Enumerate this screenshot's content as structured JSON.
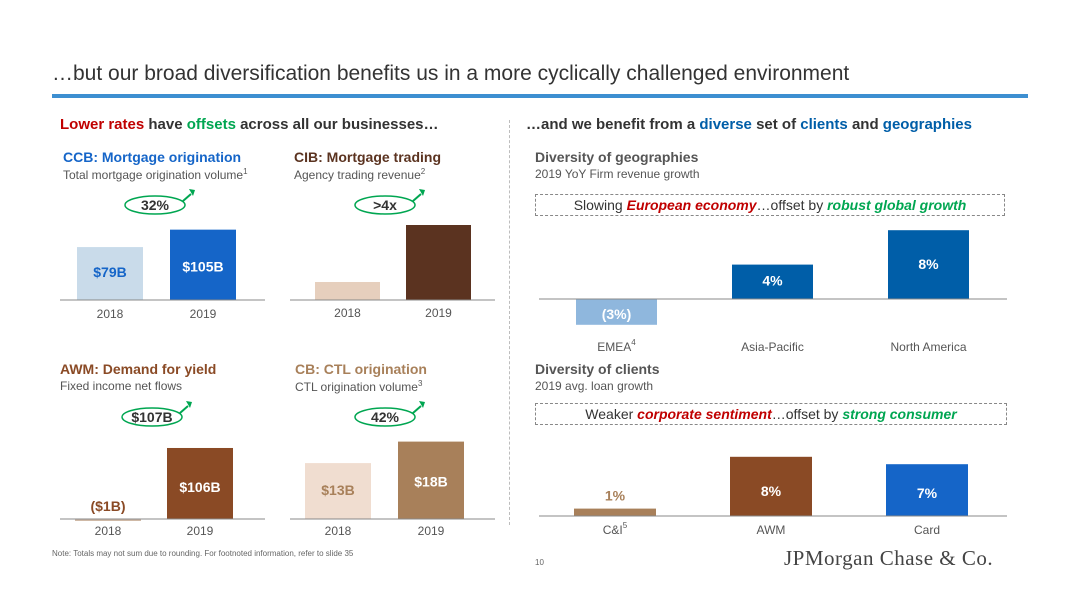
{
  "title": "…but our broad diversification benefits us in a more cyclically challenged environment",
  "left_header": {
    "p1": "Lower rates",
    "p2": " have ",
    "p3": "offsets",
    "p4": " across all our businesses…"
  },
  "right_header": {
    "p1": "…and we benefit from a ",
    "p2": "diverse",
    "p3": " set of ",
    "p4": "clients",
    "p5": " and ",
    "p6": "geographies"
  },
  "colors": {
    "red": "#c00000",
    "green": "#00a651",
    "blue": "#005ea8",
    "title_rule": "#3d8fd1"
  },
  "panels": {
    "ccb": {
      "title": "CCB: Mortgage origination",
      "subtitle": "Total mortgage origination volume",
      "footnote": "1",
      "growth_label": "32%"
    },
    "cib": {
      "title": "CIB: Mortgage trading",
      "subtitle": "Agency trading revenue",
      "footnote": "2",
      "growth_label": ">4x"
    },
    "awm": {
      "title": "AWM: Demand for yield",
      "subtitle": "Fixed income net flows",
      "growth_label": "$107B"
    },
    "cb": {
      "title": "CB: CTL origination",
      "subtitle": "CTL origination volume",
      "footnote": "3",
      "growth_label": "42%"
    },
    "geo": {
      "title": "Diversity of geographies",
      "subtitle": "2019 YoY Firm revenue growth",
      "callout": {
        "p1": "Slowing ",
        "p2": "European economy",
        "p3": "…offset by ",
        "p4": "robust global growth"
      }
    },
    "clients": {
      "title": "Diversity of clients",
      "subtitle": "2019 avg. loan growth",
      "callout": {
        "p1": "Weaker ",
        "p2": "corporate sentiment",
        "p3": "…offset by ",
        "p4": "strong consumer"
      }
    }
  },
  "chart_data": [
    {
      "id": "ccb",
      "type": "bar",
      "categories": [
        "2018",
        "2019"
      ],
      "values": [
        79,
        105
      ],
      "unit": "$B",
      "data_labels": [
        "$79B",
        "$105B"
      ],
      "colors": [
        "#c9dbea",
        "#1565c8"
      ],
      "label_colors": [
        "#1565c8",
        "#ffffff"
      ],
      "ylim": [
        0,
        110
      ]
    },
    {
      "id": "cib",
      "type": "bar",
      "categories": [
        "2018",
        "2019"
      ],
      "values": [
        null,
        null
      ],
      "data_labels": [
        "",
        ""
      ],
      "colors": [
        "#e6cfbd",
        "#5b3320"
      ],
      "label_colors": [
        "#000",
        "#fff"
      ]
    },
    {
      "id": "awm",
      "type": "bar",
      "categories": [
        "2018",
        "2019"
      ],
      "values": [
        -1,
        106
      ],
      "unit": "$B",
      "data_labels": [
        "($1B)",
        "$106B"
      ],
      "colors": [
        "#cfb9a6",
        "#8a4a25"
      ],
      "label_colors": [
        "#8a4a25",
        "#ffffff"
      ],
      "ylim": [
        0,
        110
      ]
    },
    {
      "id": "cb",
      "type": "bar",
      "categories": [
        "2018",
        "2019"
      ],
      "values": [
        13,
        18
      ],
      "unit": "$B",
      "data_labels": [
        "$13B",
        "$18B"
      ],
      "colors": [
        "#f0ddd0",
        "#a8805a"
      ],
      "label_colors": [
        "#a8805a",
        "#ffffff"
      ],
      "ylim": [
        0,
        19
      ]
    },
    {
      "id": "geo",
      "type": "bar",
      "categories": [
        "EMEA",
        "Asia-Pacific",
        "North America"
      ],
      "category_footnotes": [
        "4",
        "",
        ""
      ],
      "values": [
        -3,
        4,
        8
      ],
      "unit": "%",
      "data_labels": [
        "(3%)",
        "4%",
        "8%"
      ],
      "colors": [
        "#8fb7dd",
        "#005ea8",
        "#005ea8"
      ],
      "label_colors": [
        "#ffffff",
        "#ffffff",
        "#ffffff"
      ],
      "ylim": [
        -4,
        9
      ]
    },
    {
      "id": "clients",
      "type": "bar",
      "categories": [
        "C&I",
        "AWM",
        "Card"
      ],
      "category_footnotes": [
        "5",
        "",
        ""
      ],
      "values": [
        1,
        8,
        7
      ],
      "unit": "%",
      "data_labels": [
        "1%",
        "8%",
        "7%"
      ],
      "colors": [
        "#a8805a",
        "#8a4a25",
        "#1565c8"
      ],
      "label_colors": [
        "#a8805a",
        "#ffffff",
        "#ffffff"
      ],
      "ylim": [
        0,
        9
      ]
    }
  ],
  "footer": {
    "note": "Note: Totals may not sum due to rounding. For footnoted information, refer to slide 35",
    "page": "10",
    "logo": "JPMorgan Chase & Co."
  }
}
